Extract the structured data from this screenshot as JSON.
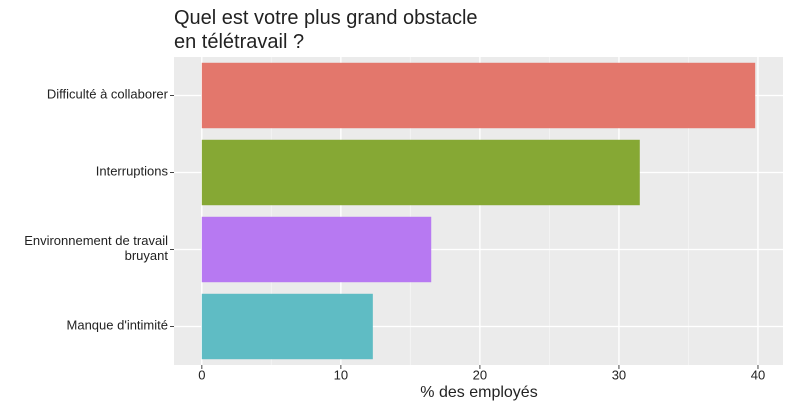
{
  "chart_data": {
    "type": "bar",
    "orientation": "horizontal",
    "title": "Quel est votre plus grand obstacle\nen télétravail ?",
    "x_label": "% des employés",
    "categories": [
      "Difficulté à collaborer",
      "Interruptions",
      "Environnement de travail\nbruyant",
      "Manque d'intimité"
    ],
    "values": [
      39.8,
      31.5,
      16.5,
      12.3
    ],
    "colors": [
      "#e3776c",
      "#86a834",
      "#b779f2",
      "#5fbcc4"
    ],
    "xlim": [
      -2,
      41.8
    ],
    "xticks": [
      0,
      10,
      20,
      30,
      40
    ],
    "grid": true
  }
}
